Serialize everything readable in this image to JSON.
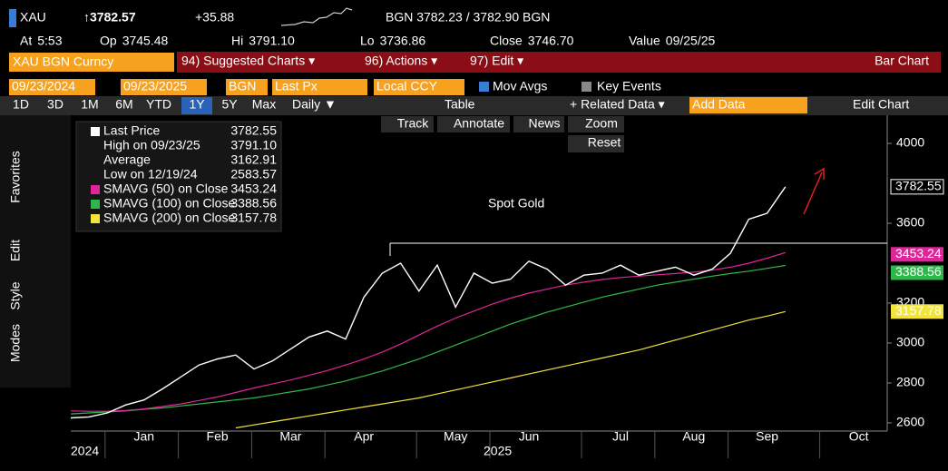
{
  "header": {
    "symbol": "XAU",
    "price": "↑3782.57",
    "change": "+35.88",
    "quote": "BGN 3782.23 / 3782.90 BGN",
    "details": [
      [
        "At",
        "5:53"
      ],
      [
        "Op",
        "3745.48"
      ],
      [
        "Hi",
        "3791.10"
      ],
      [
        "Lo",
        "3736.86"
      ],
      [
        "Close",
        "3746.70"
      ],
      [
        "Value",
        "09/25/25"
      ]
    ]
  },
  "toolbar": {
    "security": "XAU BGN Curncy",
    "menus": [
      "94) Suggested Charts ▾",
      "96) Actions ▾",
      "97) Edit ▾"
    ],
    "chart_type": "Bar Chart"
  },
  "settings": {
    "start": "09/23/2024",
    "end": "09/23/2025",
    "source": "BGN",
    "field": "Last Px",
    "currency": "Local CCY",
    "mov_avgs": "Mov Avgs",
    "key_events": "Key Events"
  },
  "periods": [
    "1D",
    "3D",
    "1M",
    "6M",
    "YTD",
    "1Y",
    "5Y",
    "Max"
  ],
  "controls": {
    "frequency": "Daily ▼",
    "table": "Table",
    "related": "+ Related Data ▾",
    "add_data": "Add Data",
    "edit_chart": "Edit Chart"
  },
  "chart_tools": [
    "Track",
    "Annotate",
    "News",
    "Zoom",
    "Reset"
  ],
  "sidebar": [
    "Favorites",
    "Edit",
    "Style",
    "Modes"
  ],
  "legend_stats": [
    {
      "label": "High on 09/23/25",
      "value": "3791.10"
    },
    {
      "label": "Average",
      "value": "3162.91"
    },
    {
      "label": "Low on 12/19/24",
      "value": "2583.57"
    }
  ],
  "chart_data": {
    "type": "line",
    "annotation": "Spot Gold",
    "categories": [
      null,
      null,
      null,
      null,
      "Jan",
      null,
      null,
      null,
      "Feb",
      null,
      null,
      null,
      "Mar",
      null,
      null,
      null,
      "Apr",
      null,
      null,
      null,
      null,
      "May",
      null,
      null,
      null,
      "Jun",
      null,
      null,
      null,
      null,
      "Jul",
      null,
      null,
      null,
      "Aug",
      null,
      null,
      null,
      "Sep",
      null,
      null,
      null,
      null,
      "Oct",
      null
    ],
    "x_years": [
      "2024",
      "2025"
    ],
    "series": [
      {
        "name": "Last Price",
        "color": "#ffffff",
        "values": [
          2625,
          2630,
          2650,
          2690,
          2715,
          2770,
          2830,
          2890,
          2920,
          2940,
          2870,
          2910,
          2970,
          3030,
          3060,
          3020,
          3230,
          3350,
          3400,
          3260,
          3390,
          3180,
          3350,
          3300,
          3320,
          3410,
          3370,
          3290,
          3340,
          3350,
          3390,
          3340,
          3360,
          3380,
          3340,
          3370,
          3450,
          3620,
          3650,
          3782.55,
          null,
          null,
          null,
          null,
          null
        ]
      },
      {
        "name": "SMAVG (50)  on Close",
        "color": "#e0249a",
        "values": [
          2660,
          2658,
          2658,
          2662,
          2670,
          2682,
          2695,
          2712,
          2730,
          2752,
          2775,
          2795,
          2815,
          2838,
          2862,
          2890,
          2920,
          2955,
          2995,
          3040,
          3085,
          3125,
          3160,
          3195,
          3225,
          3250,
          3270,
          3290,
          3305,
          3318,
          3328,
          3335,
          3342,
          3348,
          3355,
          3365,
          3380,
          3400,
          3425,
          3453.24,
          null,
          null,
          null,
          null,
          null
        ]
      },
      {
        "name": "SMAVG (100)  on Close",
        "color": "#2fb84a",
        "values": [
          2645,
          2650,
          2655,
          2660,
          2668,
          2675,
          2685,
          2695,
          2705,
          2715,
          2725,
          2740,
          2755,
          2770,
          2790,
          2810,
          2835,
          2860,
          2890,
          2920,
          2955,
          2990,
          3025,
          3060,
          3095,
          3125,
          3155,
          3180,
          3205,
          3230,
          3250,
          3270,
          3290,
          3305,
          3320,
          3335,
          3348,
          3360,
          3374,
          3388.56,
          null,
          null,
          null,
          null,
          null
        ]
      },
      {
        "name": "SMAVG (200)  on Close",
        "color": "#f2e43a",
        "values": [
          null,
          null,
          null,
          null,
          null,
          null,
          null,
          null,
          null,
          2575,
          2590,
          2605,
          2620,
          2635,
          2650,
          2665,
          2680,
          2695,
          2710,
          2725,
          2745,
          2765,
          2785,
          2805,
          2825,
          2845,
          2865,
          2885,
          2905,
          2925,
          2945,
          2965,
          2990,
          3015,
          3040,
          3065,
          3090,
          3115,
          3135,
          3157.78,
          null,
          null,
          null,
          null,
          null
        ]
      }
    ],
    "reference_line": 3500,
    "ylim": [
      2559,
      4141
    ],
    "yticks": [
      2600,
      2800,
      3000,
      3200,
      3600,
      4000
    ]
  }
}
